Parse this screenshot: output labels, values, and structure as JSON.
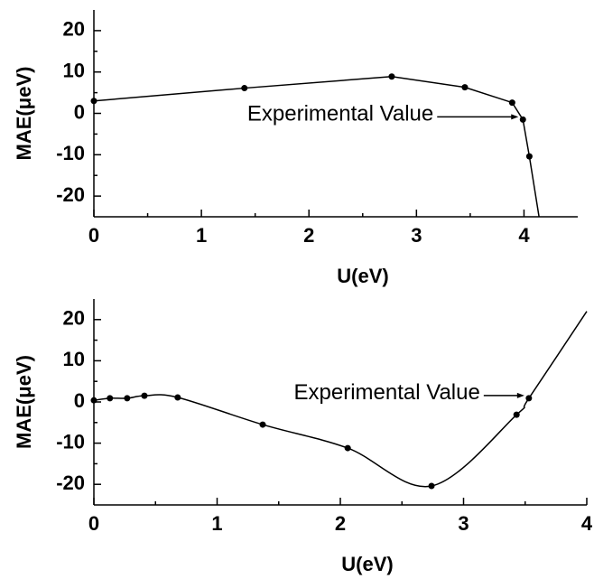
{
  "chart_data": [
    {
      "type": "line",
      "x": [
        0,
        1.4,
        2.77,
        3.45,
        3.89,
        3.99,
        4.05,
        4.14
      ],
      "values": [
        3,
        6.1,
        8.9,
        6.3,
        2.6,
        -1.5,
        -10.4,
        -25
      ],
      "markers": [
        true,
        true,
        true,
        true,
        true,
        true,
        true,
        false
      ],
      "color": "#000000",
      "smooth": false,
      "xlim": [
        0,
        4.5
      ],
      "xticks": [
        0,
        1,
        2,
        3,
        4
      ],
      "ylim": [
        -25,
        25
      ],
      "yticks": [
        -20,
        -10,
        0,
        10,
        20
      ],
      "xlabel": "U(eV)",
      "ylabel": "MAE(μeV)",
      "annotation": {
        "text": "Experimental Value",
        "x": 3.99,
        "y": -1.5
      }
    },
    {
      "type": "line",
      "x": [
        0,
        0.13,
        0.27,
        0.41,
        0.68,
        1.37,
        2.06,
        2.74,
        3.43,
        3.53,
        4
      ],
      "values": [
        0.4,
        0.9,
        0.9,
        1.5,
        1.1,
        -5.5,
        -11.2,
        -20.4,
        -3.1,
        0.9,
        22
      ],
      "markers": [
        true,
        true,
        true,
        true,
        true,
        true,
        true,
        true,
        true,
        true,
        false
      ],
      "color": "#000000",
      "smooth": true,
      "xlim": [
        0,
        4
      ],
      "xticks": [
        0,
        1,
        2,
        3,
        4
      ],
      "ylim": [
        -25,
        25
      ],
      "yticks": [
        -20,
        -10,
        0,
        10,
        20
      ],
      "xlabel": "U(eV)",
      "ylabel": "MAE(μeV)",
      "annotation": {
        "text": "Experimental Value",
        "x": 3.53,
        "y": 0.9
      }
    }
  ]
}
